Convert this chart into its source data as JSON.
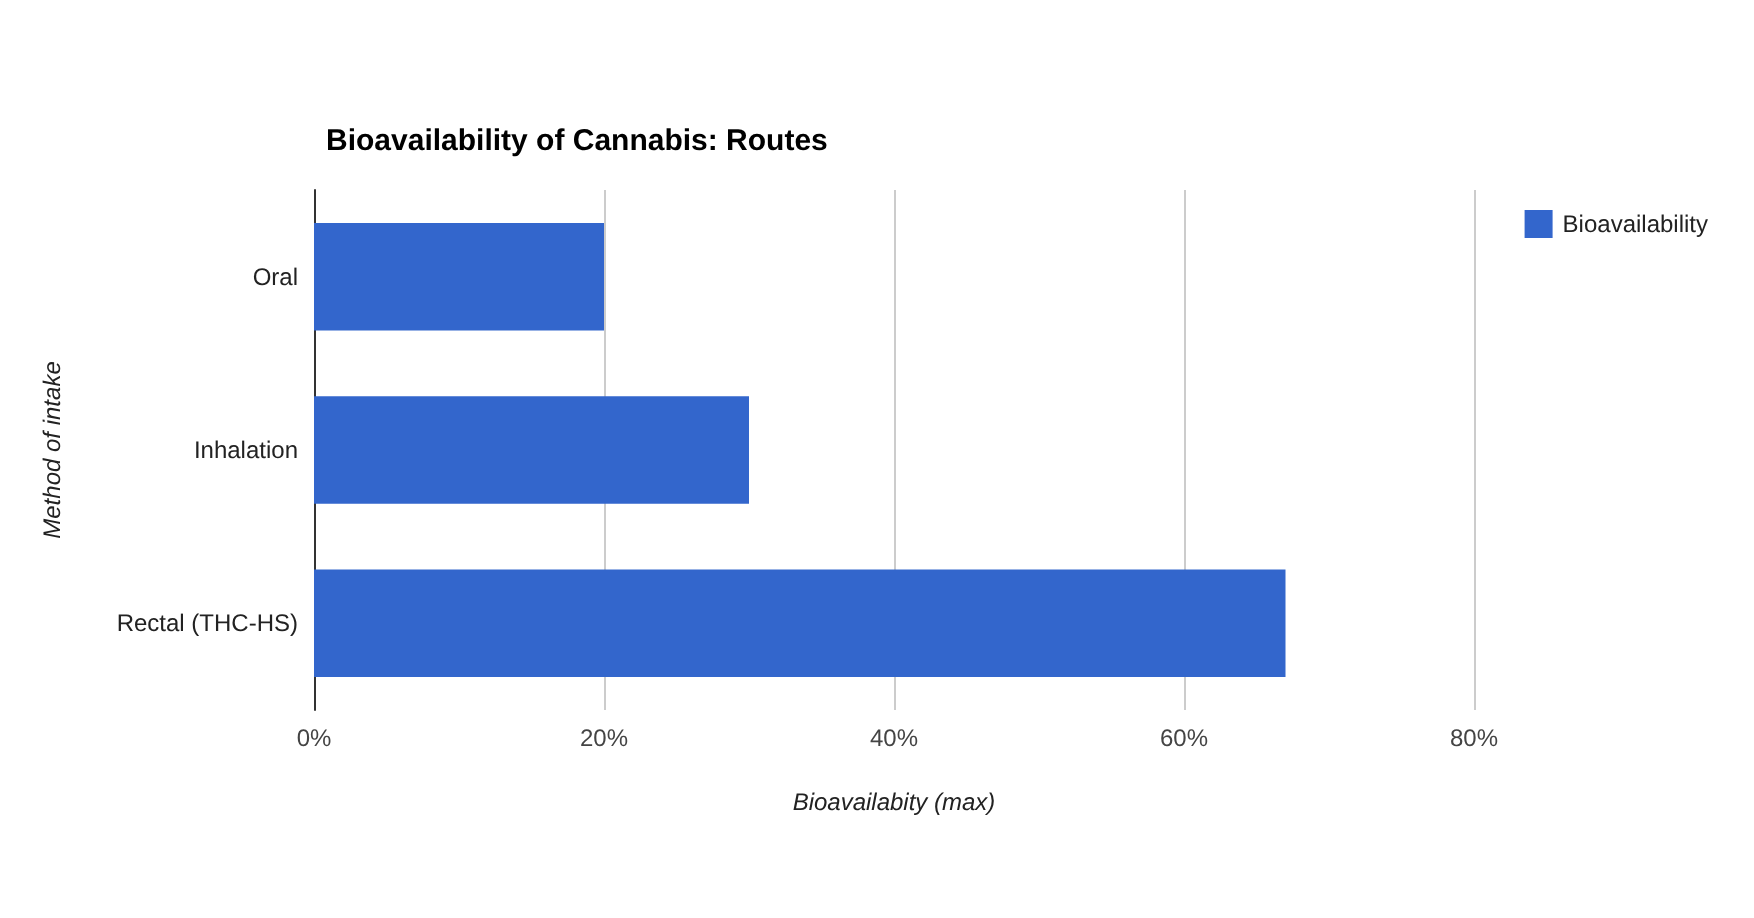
{
  "chart_data": {
    "type": "bar",
    "orientation": "horizontal",
    "title": "Bioavailability of Cannabis: Routes",
    "xlabel": "Bioavailabity (max)",
    "ylabel": "Method of intake",
    "categories": [
      "Oral",
      "Inhalation",
      "Rectal (THC-HS)"
    ],
    "series": [
      {
        "name": "Bioavailability",
        "color": "#3366cc",
        "values": [
          20,
          30,
          67
        ]
      }
    ],
    "xlim": [
      0,
      80
    ],
    "xticks": [
      {
        "value": 0,
        "label": "0%"
      },
      {
        "value": 20,
        "label": "20%"
      },
      {
        "value": 40,
        "label": "40%"
      },
      {
        "value": 60,
        "label": "60%"
      },
      {
        "value": 80,
        "label": "80%"
      }
    ],
    "grid": "x",
    "legend": "top right"
  }
}
